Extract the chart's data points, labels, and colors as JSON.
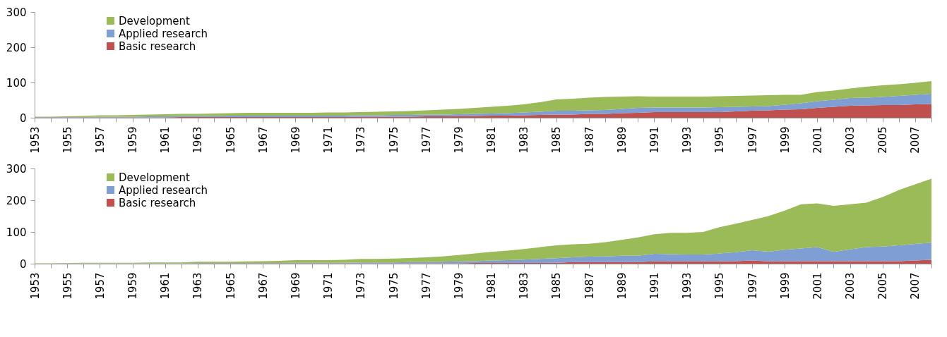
{
  "chart_data": [
    {
      "type": "area",
      "stacked": true,
      "legend": "top left",
      "categories": [
        "1953",
        null,
        "1955",
        null,
        "1957",
        null,
        "1959",
        null,
        "1961",
        null,
        "1963",
        null,
        "1965",
        null,
        "1967",
        null,
        "1969",
        null,
        "1971",
        null,
        "1973",
        null,
        "1975",
        null,
        "1977",
        null,
        "1979",
        null,
        "1981",
        null,
        "1983",
        null,
        "1985",
        null,
        "1987",
        null,
        "1989",
        null,
        "1991",
        null,
        "1993",
        null,
        "1995",
        null,
        "1997",
        null,
        "1999",
        null,
        "2001",
        null,
        "2003",
        null,
        "2005",
        null,
        "2007",
        null
      ],
      "ylim": [
        0,
        300
      ],
      "yticks": [
        0,
        100,
        200,
        300
      ],
      "series": [
        {
          "name": "Basic research",
          "color": "#c0504d",
          "values": [
            1,
            1,
            1,
            1,
            1,
            1,
            1,
            1,
            1,
            2,
            2,
            2,
            2,
            2,
            2,
            2,
            2,
            2,
            2,
            2,
            3,
            3,
            3,
            3,
            4,
            4,
            5,
            5,
            6,
            6,
            7,
            8,
            9,
            9,
            11,
            11,
            13,
            14,
            16,
            16,
            16,
            16,
            16,
            18,
            20,
            21,
            23,
            24,
            28,
            31,
            34,
            35,
            36,
            36,
            38,
            39
          ]
        },
        {
          "name": "Applied research",
          "color": "#7f9ed4",
          "values": [
            1,
            1,
            1,
            1,
            2,
            2,
            2,
            3,
            3,
            3,
            3,
            3,
            4,
            4,
            4,
            4,
            4,
            4,
            4,
            4,
            4,
            4,
            5,
            5,
            5,
            5,
            5,
            6,
            6,
            7,
            8,
            9,
            11,
            11,
            10,
            11,
            12,
            14,
            13,
            13,
            13,
            13,
            14,
            13,
            12,
            12,
            14,
            17,
            19,
            20,
            22,
            22,
            23,
            26,
            27,
            29
          ]
        },
        {
          "name": "Development",
          "color": "#9bbb59",
          "values": [
            1,
            1,
            2,
            3,
            4,
            4,
            5,
            5,
            6,
            6,
            6,
            7,
            7,
            8,
            8,
            8,
            8,
            8,
            9,
            9,
            9,
            10,
            10,
            11,
            12,
            14,
            15,
            17,
            19,
            21,
            23,
            27,
            32,
            34,
            36,
            37,
            35,
            33,
            31,
            31,
            31,
            31,
            31,
            31,
            31,
            31,
            28,
            24,
            26,
            26,
            27,
            31,
            33,
            33,
            34,
            36
          ]
        }
      ]
    },
    {
      "type": "area",
      "stacked": true,
      "legend": "top left",
      "categories": [
        "1953",
        null,
        "1955",
        null,
        "1957",
        null,
        "1959",
        null,
        "1961",
        null,
        "1963",
        null,
        "1965",
        null,
        "1967",
        null,
        "1969",
        null,
        "1971",
        null,
        "1973",
        null,
        "1975",
        null,
        "1977",
        null,
        "1979",
        null,
        "1981",
        null,
        "1983",
        null,
        "1985",
        null,
        "1987",
        null,
        "1989",
        null,
        "1991",
        null,
        "1993",
        null,
        "1995",
        null,
        "1997",
        null,
        "1999",
        null,
        "2001",
        null,
        "2003",
        null,
        "2005",
        null,
        "2007",
        null
      ],
      "ylim": [
        0,
        300
      ],
      "yticks": [
        0,
        100,
        200,
        300
      ],
      "series": [
        {
          "name": "Basic research",
          "color": "#c0504d",
          "values": [
            0,
            0,
            0,
            0,
            0,
            0,
            0,
            0,
            0,
            0,
            1,
            1,
            1,
            1,
            1,
            1,
            1,
            1,
            1,
            1,
            1,
            1,
            1,
            1,
            1,
            1,
            1,
            2,
            2,
            2,
            2,
            2,
            3,
            5,
            5,
            5,
            5,
            5,
            7,
            7,
            7,
            7,
            7,
            8,
            10,
            7,
            7,
            8,
            8,
            8,
            8,
            8,
            8,
            8,
            10,
            12
          ]
        },
        {
          "name": "Applied research",
          "color": "#7f9ed4",
          "values": [
            0,
            0,
            1,
            1,
            1,
            1,
            1,
            1,
            1,
            1,
            1,
            1,
            1,
            1,
            1,
            1,
            2,
            2,
            2,
            2,
            3,
            3,
            3,
            4,
            4,
            5,
            6,
            6,
            8,
            9,
            11,
            13,
            14,
            15,
            17,
            18,
            20,
            20,
            24,
            23,
            22,
            22,
            25,
            28,
            32,
            31,
            37,
            40,
            44,
            29,
            37,
            44,
            46,
            50,
            52,
            54
          ]
        },
        {
          "name": "Development",
          "color": "#9bbb59",
          "values": [
            1,
            1,
            1,
            2,
            2,
            2,
            2,
            3,
            3,
            3,
            4,
            4,
            4,
            5,
            6,
            7,
            8,
            8,
            8,
            9,
            11,
            11,
            12,
            13,
            15,
            17,
            20,
            24,
            27,
            30,
            33,
            37,
            41,
            41,
            41,
            45,
            50,
            58,
            62,
            67,
            68,
            71,
            83,
            90,
            96,
            112,
            123,
            139,
            138,
            145,
            142,
            140,
            156,
            174,
            188,
            202
          ]
        }
      ]
    }
  ]
}
